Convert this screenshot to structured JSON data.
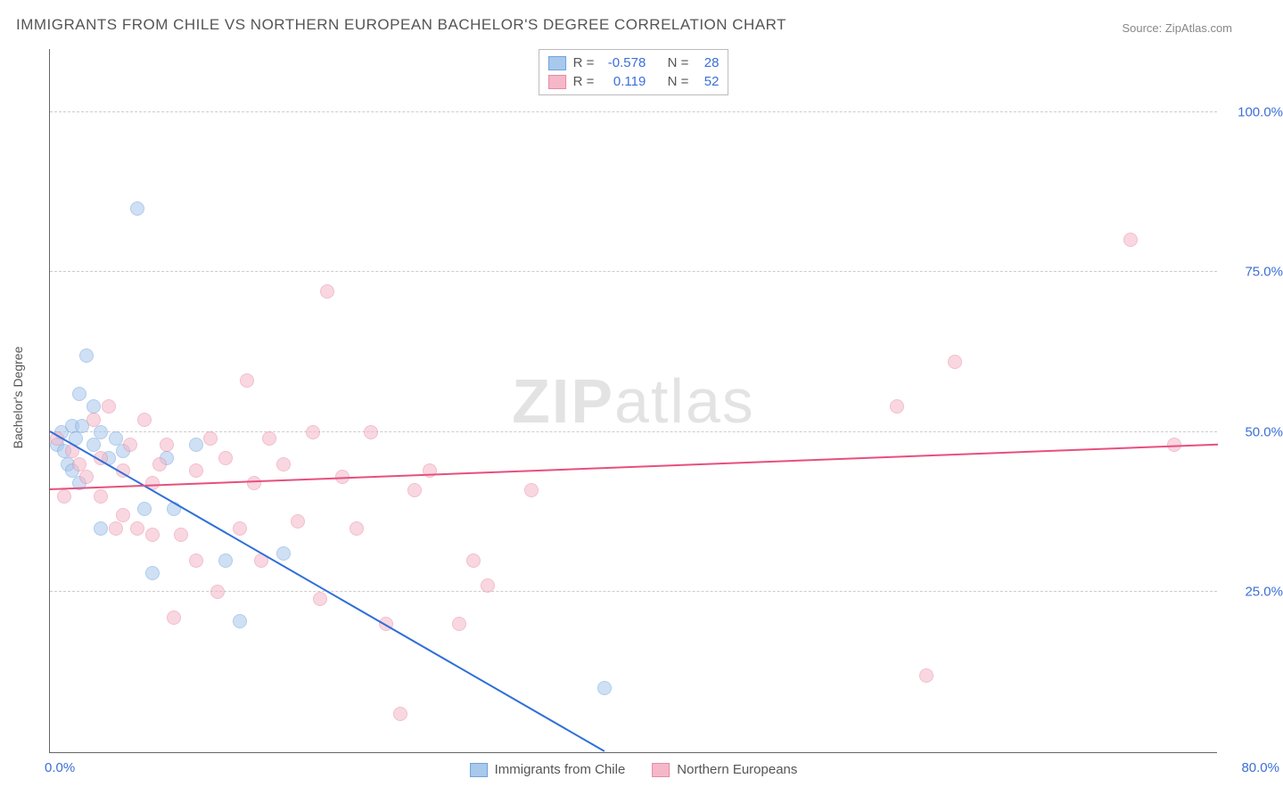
{
  "title": "IMMIGRANTS FROM CHILE VS NORTHERN EUROPEAN BACHELOR'S DEGREE CORRELATION CHART",
  "source": "Source: ZipAtlas.com",
  "y_axis_title": "Bachelor's Degree",
  "watermark_bold": "ZIP",
  "watermark_rest": "atlas",
  "chart": {
    "type": "scatter",
    "xlim": [
      0,
      80
    ],
    "ylim": [
      0,
      110
    ],
    "x_ticks": [
      {
        "value": 0,
        "label": "0.0%"
      },
      {
        "value": 80,
        "label": "80.0%"
      }
    ],
    "y_ticks": [
      {
        "value": 25,
        "label": "25.0%"
      },
      {
        "value": 50,
        "label": "50.0%"
      },
      {
        "value": 75,
        "label": "75.0%"
      },
      {
        "value": 100,
        "label": "100.0%"
      }
    ],
    "grid_color": "#cccccc",
    "background_color": "#ffffff",
    "axis_color": "#666666",
    "series": [
      {
        "name": "Immigrants from Chile",
        "color_fill": "#a8c8ec",
        "color_stroke": "#6fa3e0",
        "fill_opacity": 0.55,
        "marker_radius": 8,
        "r_value": "-0.578",
        "n_value": "28",
        "trend": {
          "x1": 0,
          "y1": 50,
          "x2": 38,
          "y2": 0,
          "color": "#2f6fd8",
          "width": 2
        },
        "points": [
          [
            0.5,
            48
          ],
          [
            0.8,
            50
          ],
          [
            1,
            47
          ],
          [
            1.2,
            45
          ],
          [
            1.5,
            51
          ],
          [
            1.5,
            44
          ],
          [
            1.8,
            49
          ],
          [
            2,
            56
          ],
          [
            2,
            42
          ],
          [
            2.2,
            51
          ],
          [
            2.5,
            62
          ],
          [
            3,
            48
          ],
          [
            3,
            54
          ],
          [
            3.5,
            50
          ],
          [
            3.5,
            35
          ],
          [
            4,
            46
          ],
          [
            4.5,
            49
          ],
          [
            5,
            47
          ],
          [
            6,
            85
          ],
          [
            6.5,
            38
          ],
          [
            7,
            28
          ],
          [
            8,
            46
          ],
          [
            8.5,
            38
          ],
          [
            10,
            48
          ],
          [
            12,
            30
          ],
          [
            13,
            20.5
          ],
          [
            16,
            31
          ],
          [
            38,
            10
          ]
        ]
      },
      {
        "name": "Northern Europeans",
        "color_fill": "#f5b8c8",
        "color_stroke": "#e88aa5",
        "fill_opacity": 0.55,
        "marker_radius": 8,
        "r_value": "0.119",
        "n_value": "52",
        "trend": {
          "x1": 0,
          "y1": 41,
          "x2": 80,
          "y2": 48,
          "color": "#e84f7d",
          "width": 2
        },
        "points": [
          [
            0.5,
            49
          ],
          [
            1,
            40
          ],
          [
            1.5,
            47
          ],
          [
            2,
            45
          ],
          [
            2.5,
            43
          ],
          [
            3,
            52
          ],
          [
            3.5,
            46
          ],
          [
            3.5,
            40
          ],
          [
            4,
            54
          ],
          [
            4.5,
            35
          ],
          [
            5,
            44
          ],
          [
            5,
            37
          ],
          [
            5.5,
            48
          ],
          [
            6,
            35
          ],
          [
            6.5,
            52
          ],
          [
            7,
            42
          ],
          [
            7,
            34
          ],
          [
            7.5,
            45
          ],
          [
            8,
            48
          ],
          [
            8.5,
            21
          ],
          [
            9,
            34
          ],
          [
            10,
            44
          ],
          [
            10,
            30
          ],
          [
            11,
            49
          ],
          [
            11.5,
            25
          ],
          [
            12,
            46
          ],
          [
            13,
            35
          ],
          [
            13.5,
            58
          ],
          [
            14,
            42
          ],
          [
            14.5,
            30
          ],
          [
            15,
            49
          ],
          [
            16,
            45
          ],
          [
            17,
            36
          ],
          [
            18,
            50
          ],
          [
            18.5,
            24
          ],
          [
            19,
            72
          ],
          [
            20,
            43
          ],
          [
            21,
            35
          ],
          [
            22,
            50
          ],
          [
            23,
            20
          ],
          [
            24,
            6
          ],
          [
            25,
            41
          ],
          [
            26,
            44
          ],
          [
            28,
            20
          ],
          [
            29,
            30
          ],
          [
            30,
            26
          ],
          [
            33,
            41
          ],
          [
            58,
            54
          ],
          [
            60,
            12
          ],
          [
            62,
            61
          ],
          [
            74,
            80
          ],
          [
            77,
            48
          ]
        ]
      }
    ]
  },
  "legend_labels": {
    "r": "R =",
    "n": "N ="
  }
}
